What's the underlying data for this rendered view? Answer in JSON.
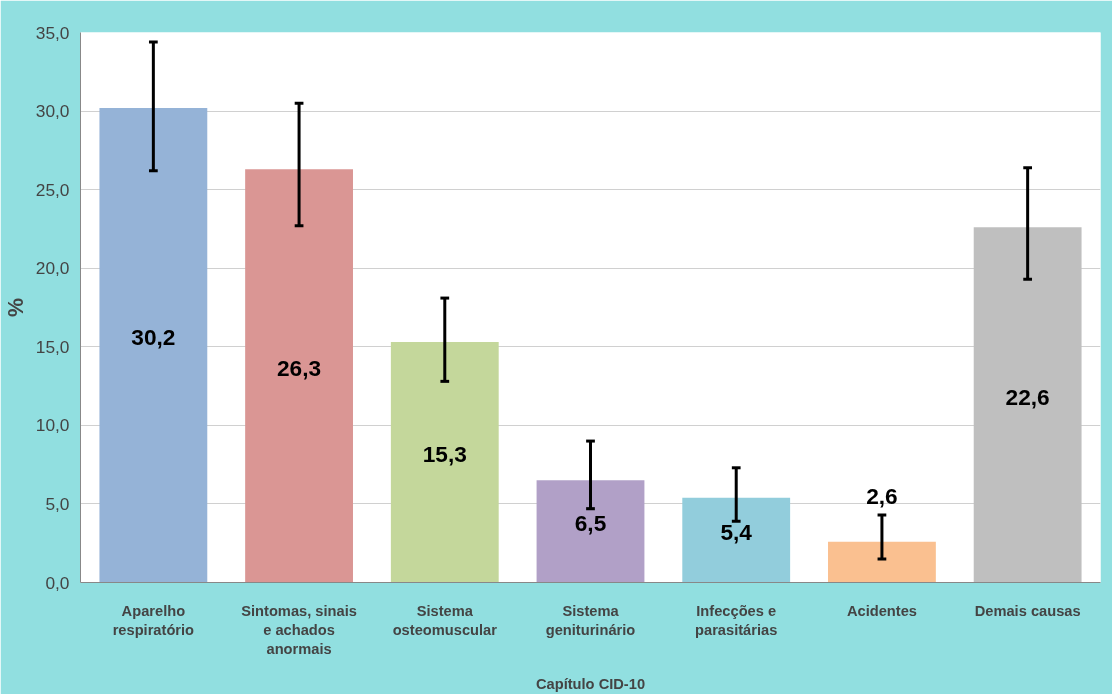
{
  "chart_data": {
    "type": "bar",
    "xlabel": "Capítulo CID-10",
    "ylabel": "%",
    "categories": [
      "Aparelho respiratório",
      "Sintomas, sinais e achados anormais",
      "Sistema osteomuscular",
      "Sistema geniturinário",
      "Infecções e parasitárias",
      "Acidentes",
      "Demais causas"
    ],
    "values": [
      30.2,
      26.3,
      15.3,
      6.5,
      5.4,
      2.6,
      22.6
    ],
    "colors": [
      "#95b3d7",
      "#da9694",
      "#c4d79b",
      "#b1a0c7",
      "#92cddc",
      "#fac090",
      "#bfbfbf"
    ],
    "errors": [
      [
        26.2,
        34.4
      ],
      [
        22.7,
        30.5
      ],
      [
        12.8,
        18.1
      ],
      [
        4.7,
        9.0
      ],
      [
        3.9,
        7.3
      ],
      [
        1.5,
        4.3
      ],
      [
        19.3,
        26.4
      ]
    ],
    "value_labels": [
      "30,2",
      "26,3",
      "15,3",
      "6,5",
      "5,4",
      "2,6",
      "22,6"
    ],
    "ylim": [
      0,
      35
    ],
    "yticks": [
      {
        "value": 0,
        "label": "0,0"
      },
      {
        "value": 5,
        "label": "5,0"
      },
      {
        "value": 10,
        "label": "10,0"
      },
      {
        "value": 15,
        "label": "15,0"
      },
      {
        "value": 20,
        "label": "20,0"
      },
      {
        "value": 25,
        "label": "25,0"
      },
      {
        "value": 30,
        "label": "30,0"
      },
      {
        "value": 35,
        "label": "35,0"
      }
    ],
    "grid": "y"
  }
}
